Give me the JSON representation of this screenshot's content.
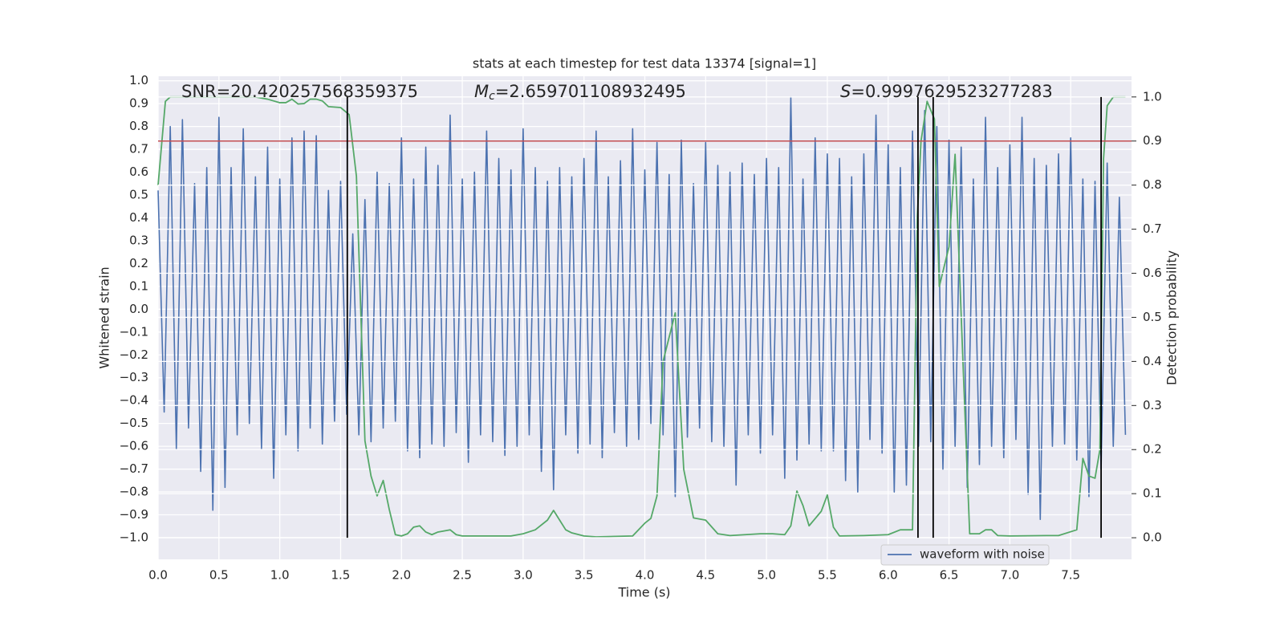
{
  "chart_data": {
    "type": "line",
    "title": "stats at each timestep for test data 13374 [signal=1]",
    "xlabel": "Time (s)",
    "ylabel": "Whitened strain",
    "y2label": "Detection probability",
    "annotations": [
      {
        "text": "SNR=20.420257568359375"
      },
      {
        "symbol": "M",
        "subscript": "c",
        "text": "=2.659701108932495"
      },
      {
        "symbol": "S",
        "text": "=0.9997629523277283"
      }
    ],
    "xlim": [
      0,
      8
    ],
    "ylim": [
      -1.095,
      1.02
    ],
    "y2lim": [
      -0.049,
      1.047
    ],
    "grid": true,
    "legend": "lower right",
    "xticks": [
      {
        "value": 0,
        "label": "0.0"
      },
      {
        "value": 0.5,
        "label": "0.5"
      },
      {
        "value": 1,
        "label": "1.0"
      },
      {
        "value": 1.5,
        "label": "1.5"
      },
      {
        "value": 2,
        "label": "2.0"
      },
      {
        "value": 2.5,
        "label": "2.5"
      },
      {
        "value": 3,
        "label": "3.0"
      },
      {
        "value": 3.5,
        "label": "3.5"
      },
      {
        "value": 4,
        "label": "4.0"
      },
      {
        "value": 4.5,
        "label": "4.5"
      },
      {
        "value": 5,
        "label": "5.0"
      },
      {
        "value": 5.5,
        "label": "5.5"
      },
      {
        "value": 6,
        "label": "6.0"
      },
      {
        "value": 6.5,
        "label": "6.5"
      },
      {
        "value": 7,
        "label": "7.0"
      },
      {
        "value": 7.5,
        "label": "7.5"
      }
    ],
    "yticks": [
      {
        "value": 1,
        "label": "1.0"
      },
      {
        "value": 0.9,
        "label": "0.9"
      },
      {
        "value": 0.8,
        "label": "0.8"
      },
      {
        "value": 0.7,
        "label": "0.7"
      },
      {
        "value": 0.6,
        "label": "0.6"
      },
      {
        "value": 0.5,
        "label": "0.5"
      },
      {
        "value": 0.4,
        "label": "0.4"
      },
      {
        "value": 0.3,
        "label": "0.3"
      },
      {
        "value": 0.2,
        "label": "0.2"
      },
      {
        "value": 0.1,
        "label": "0.1"
      },
      {
        "value": 0,
        "label": "0.0"
      },
      {
        "value": -0.1,
        "label": "−0.1"
      },
      {
        "value": -0.2,
        "label": "−0.2"
      },
      {
        "value": -0.3,
        "label": "−0.3"
      },
      {
        "value": -0.4,
        "label": "−0.4"
      },
      {
        "value": -0.5,
        "label": "−0.5"
      },
      {
        "value": -0.6,
        "label": "−0.6"
      },
      {
        "value": -0.7,
        "label": "−0.7"
      },
      {
        "value": -0.8,
        "label": "−0.8"
      },
      {
        "value": -0.9,
        "label": "−0.9"
      },
      {
        "value": -1,
        "label": "−1.0"
      }
    ],
    "y2ticks": [
      {
        "value": 0,
        "label": "0.0"
      },
      {
        "value": 0.1,
        "label": "0.1"
      },
      {
        "value": 0.2,
        "label": "0.2"
      },
      {
        "value": 0.3,
        "label": "0.3"
      },
      {
        "value": 0.4,
        "label": "0.4"
      },
      {
        "value": 0.5,
        "label": "0.5"
      },
      {
        "value": 0.6,
        "label": "0.6"
      },
      {
        "value": 0.7,
        "label": "0.7"
      },
      {
        "value": 0.8,
        "label": "0.8"
      },
      {
        "value": 0.9,
        "label": "0.9"
      },
      {
        "value": 1,
        "label": "1.0"
      }
    ],
    "threshold": {
      "value": 0.9,
      "axis": "y2",
      "color": "#c44e52"
    },
    "vlines": {
      "x": [
        1.555,
        6.245,
        6.37,
        7.75
      ],
      "span": [
        0,
        1
      ],
      "axis": "y2",
      "color": "#000000"
    },
    "series": [
      {
        "name": "waveform with noise",
        "color": "#4c72b0",
        "x": [
          0,
          0.05,
          0.1,
          0.15,
          0.2,
          0.25,
          0.3,
          0.35,
          0.4,
          0.45,
          0.5,
          0.55,
          0.6,
          0.65,
          0.7,
          0.75,
          0.8,
          0.85,
          0.9,
          0.95,
          1,
          1.05,
          1.1,
          1.15,
          1.2,
          1.25,
          1.3,
          1.35,
          1.4,
          1.45,
          1.5,
          1.55,
          1.6,
          1.65,
          1.7,
          1.75,
          1.8,
          1.85,
          1.9,
          1.95,
          2,
          2.05,
          2.1,
          2.15,
          2.2,
          2.25,
          2.3,
          2.35,
          2.4,
          2.45,
          2.5,
          2.55,
          2.6,
          2.65,
          2.7,
          2.75,
          2.8,
          2.85,
          2.9,
          2.95,
          3,
          3.05,
          3.1,
          3.15,
          3.2,
          3.25,
          3.3,
          3.35,
          3.4,
          3.45,
          3.5,
          3.55,
          3.6,
          3.65,
          3.7,
          3.75,
          3.8,
          3.85,
          3.9,
          3.95,
          4,
          4.05,
          4.1,
          4.15,
          4.2,
          4.25,
          4.3,
          4.35,
          4.4,
          4.45,
          4.5,
          4.55,
          4.6,
          4.65,
          4.7,
          4.75,
          4.8,
          4.85,
          4.9,
          4.95,
          5,
          5.05,
          5.1,
          5.15,
          5.2,
          5.25,
          5.3,
          5.35,
          5.4,
          5.45,
          5.5,
          5.55,
          5.6,
          5.65,
          5.7,
          5.75,
          5.8,
          5.85,
          5.9,
          5.95,
          6,
          6.05,
          6.1,
          6.15,
          6.2,
          6.25,
          6.3,
          6.35,
          6.4,
          6.45,
          6.5,
          6.55,
          6.6,
          6.65,
          6.7,
          6.75,
          6.8,
          6.85,
          6.9,
          6.95,
          7,
          7.05,
          7.1,
          7.15,
          7.2,
          7.25,
          7.3,
          7.35,
          7.4,
          7.45,
          7.5,
          7.55,
          7.6,
          7.65,
          7.7,
          7.75,
          7.8,
          7.85,
          7.9,
          7.95
        ],
        "values": [
          0.52,
          -0.45,
          0.8,
          -0.61,
          0.83,
          -0.52,
          0.55,
          -0.71,
          0.62,
          -0.88,
          0.84,
          -0.78,
          0.62,
          -0.55,
          0.79,
          -0.5,
          0.58,
          -0.61,
          0.71,
          -0.74,
          0.57,
          -0.55,
          0.75,
          -0.62,
          0.78,
          -0.52,
          0.76,
          -0.59,
          0.52,
          -0.49,
          0.56,
          -0.46,
          0.33,
          -0.55,
          0.48,
          -0.58,
          0.6,
          -0.52,
          0.55,
          -0.49,
          0.75,
          -0.62,
          0.57,
          -0.65,
          0.71,
          -0.59,
          0.63,
          -0.6,
          0.85,
          -0.54,
          0.57,
          -0.67,
          0.6,
          -0.55,
          0.78,
          -0.58,
          0.66,
          -0.64,
          0.61,
          -0.6,
          0.79,
          -0.55,
          0.62,
          -0.71,
          0.56,
          -0.79,
          0.62,
          -0.55,
          0.58,
          -0.63,
          0.66,
          -0.59,
          0.78,
          -0.65,
          0.58,
          -0.54,
          0.65,
          -0.6,
          0.79,
          -0.57,
          0.61,
          -0.5,
          0.73,
          -0.55,
          0.59,
          -0.82,
          0.74,
          -0.56,
          0.55,
          -0.52,
          0.73,
          -0.58,
          0.63,
          -0.6,
          0.6,
          -0.77,
          0.64,
          -0.55,
          0.59,
          -0.63,
          0.66,
          -0.55,
          0.62,
          -0.74,
          0.93,
          -0.66,
          0.57,
          -0.59,
          0.75,
          -0.62,
          0.68,
          -0.62,
          0.66,
          -0.75,
          0.58,
          -0.8,
          0.68,
          -0.57,
          0.85,
          -0.63,
          0.72,
          -0.8,
          0.62,
          -0.77,
          0.78,
          -0.6,
          0.87,
          -0.58,
          0.8,
          -0.7,
          0.74,
          -0.6,
          0.71,
          -0.78,
          0.57,
          -0.68,
          0.84,
          -0.6,
          0.62,
          -0.65,
          0.72,
          -0.57,
          0.84,
          -0.81,
          0.66,
          -0.92,
          0.63,
          -0.6,
          0.68,
          -0.59,
          0.75,
          -0.66,
          0.57,
          -0.82,
          0.56,
          -0.7,
          0.64,
          -0.6,
          0.49,
          -0.55
        ]
      },
      {
        "color": "#55a868",
        "axis": "y2",
        "x": [
          0,
          0.06,
          0.1,
          0.8,
          0.9,
          1,
          1.05,
          1.1,
          1.15,
          1.2,
          1.25,
          1.3,
          1.35,
          1.4,
          1.5,
          1.57,
          1.63,
          1.7,
          1.75,
          1.8,
          1.85,
          1.9,
          1.95,
          2,
          2.05,
          2.1,
          2.15,
          2.2,
          2.25,
          2.3,
          2.4,
          2.45,
          2.5,
          2.7,
          2.9,
          3,
          3.1,
          3.2,
          3.25,
          3.3,
          3.35,
          3.4,
          3.5,
          3.6,
          3.9,
          4,
          4.05,
          4.1,
          4.15,
          4.25,
          4.32,
          4.4,
          4.5,
          4.6,
          4.7,
          4.95,
          5.05,
          5.15,
          5.2,
          5.25,
          5.3,
          5.35,
          5.45,
          5.5,
          5.55,
          5.6,
          5.8,
          6,
          6.1,
          6.2,
          6.24,
          6.27,
          6.32,
          6.38,
          6.42,
          6.5,
          6.55,
          6.62,
          6.67,
          6.75,
          6.8,
          6.85,
          6.9,
          7,
          7.3,
          7.4,
          7.55,
          7.6,
          7.65,
          7.7,
          7.74,
          7.77,
          7.8,
          7.85,
          7.95
        ],
        "values": [
          0.8,
          0.99,
          1,
          1,
          0.995,
          0.987,
          0.987,
          0.995,
          0.984,
          0.985,
          0.995,
          0.995,
          0.991,
          0.978,
          0.976,
          0.96,
          0.82,
          0.22,
          0.14,
          0.095,
          0.13,
          0.064,
          0.007,
          0.004,
          0.009,
          0.024,
          0.027,
          0.013,
          0.007,
          0.013,
          0.018,
          0.007,
          0.004,
          0.004,
          0.004,
          0.009,
          0.018,
          0.04,
          0.062,
          0.04,
          0.018,
          0.011,
          0.004,
          0.002,
          0.004,
          0.033,
          0.044,
          0.095,
          0.4,
          0.51,
          0.155,
          0.045,
          0.04,
          0.009,
          0.005,
          0.009,
          0.009,
          0.007,
          0.027,
          0.106,
          0.073,
          0.027,
          0.06,
          0.097,
          0.024,
          0.004,
          0.005,
          0.007,
          0.018,
          0.018,
          0.73,
          0.9,
          0.99,
          0.95,
          0.57,
          0.66,
          0.87,
          0.36,
          0.009,
          0.009,
          0.018,
          0.018,
          0.005,
          0.004,
          0.005,
          0.005,
          0.018,
          0.18,
          0.14,
          0.135,
          0.2,
          0.86,
          0.98,
          1,
          1
        ]
      }
    ]
  }
}
